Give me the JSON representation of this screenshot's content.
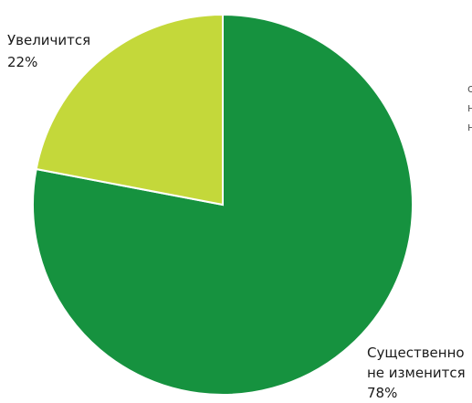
{
  "chart_data": {
    "type": "pie",
    "slices": [
      {
        "label_lines": [
          "Существенно",
          "не изменится"
        ],
        "percent_label": "78%",
        "value": 78,
        "color": "#16923f"
      },
      {
        "label_lines": [
          "Увеличится"
        ],
        "percent_label": "22%",
        "value": 22,
        "color": "#c4d83a"
      }
    ],
    "clipped_right_text": [
      "с",
      "н",
      "н"
    ]
  }
}
